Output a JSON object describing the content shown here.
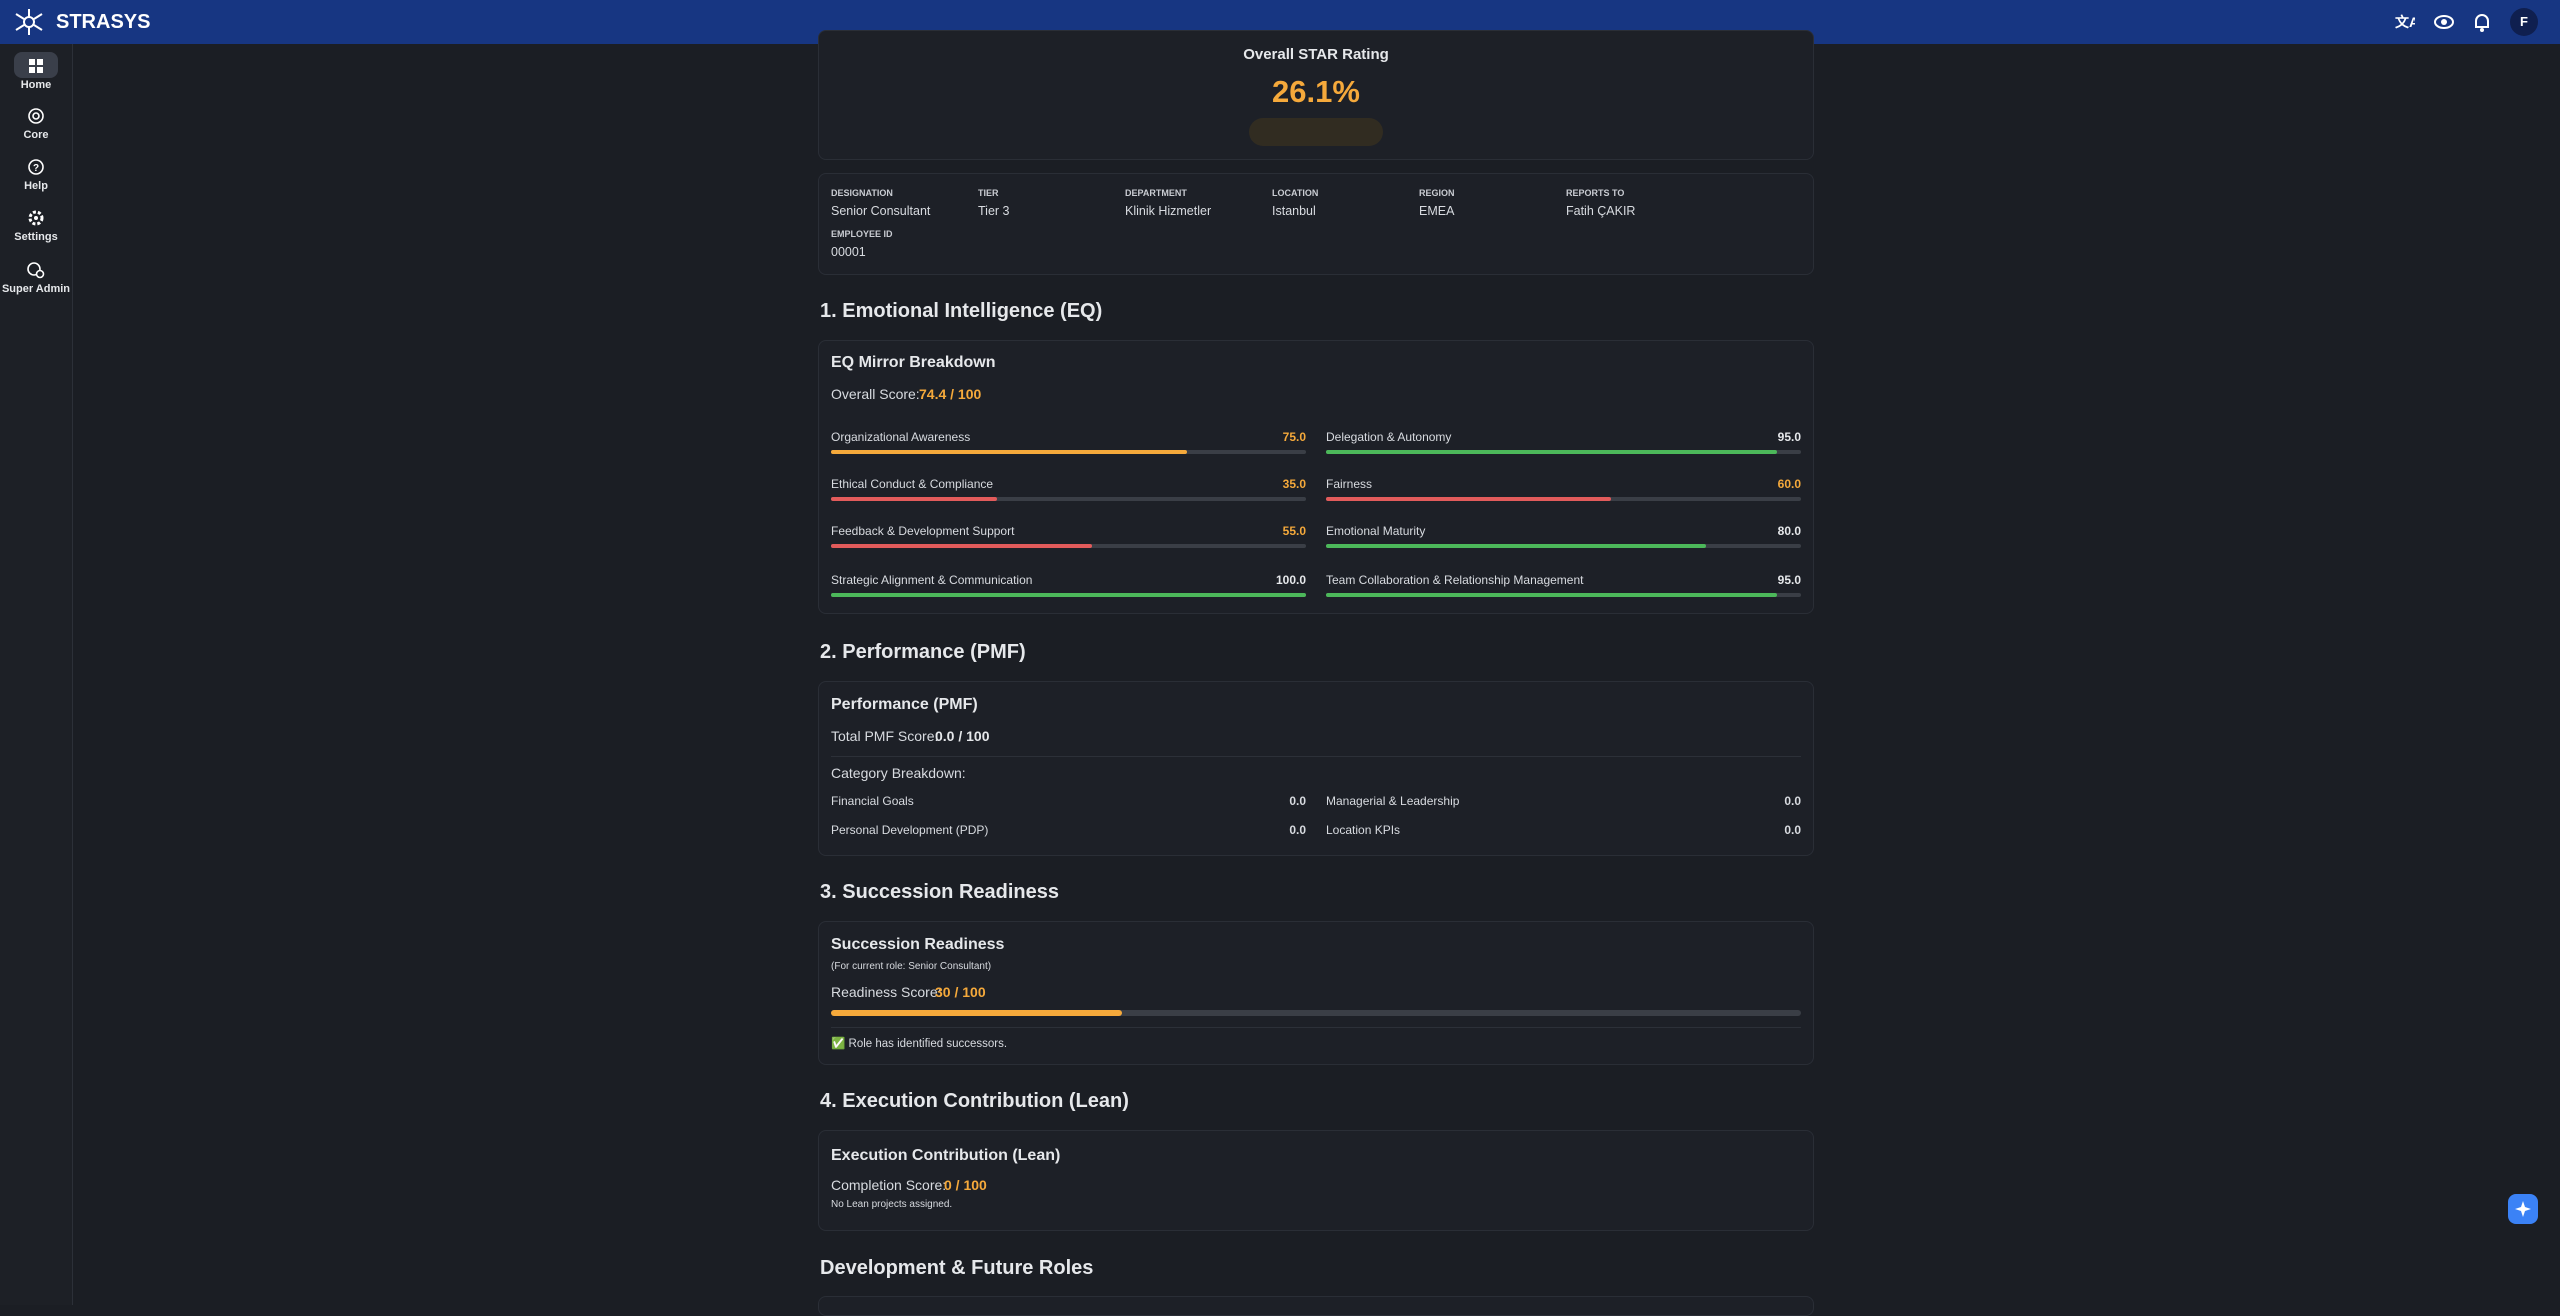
{
  "topbar": {
    "brand": "STRASYS",
    "avatar": "F"
  },
  "sidebar": [
    {
      "label": "Home"
    },
    {
      "label": "Core"
    },
    {
      "label": "Help"
    },
    {
      "label": "Settings"
    },
    {
      "label": "Super Admin"
    }
  ],
  "rating": {
    "title": "Overall STAR Rating",
    "value": "26.1%"
  },
  "profile": [
    {
      "label": "DESIGNATION",
      "value": "Senior Consultant"
    },
    {
      "label": "TIER",
      "value": "Tier 3"
    },
    {
      "label": "DEPARTMENT",
      "value": "Klinik Hizmetler"
    },
    {
      "label": "LOCATION",
      "value": "Istanbul"
    },
    {
      "label": "REGION",
      "value": "EMEA"
    },
    {
      "label": "REPORTS TO",
      "value": "Fatih ÇAKIR"
    },
    {
      "label": "EMPLOYEE ID",
      "value": "00001"
    }
  ],
  "eq": {
    "heading": "1. Emotional Intelligence (EQ)",
    "title": "EQ Mirror Breakdown",
    "score_label": "Overall Score:",
    "score": "74.4 / 100",
    "max": 100,
    "metrics": [
      {
        "name": "Organizational Awareness",
        "value": 75,
        "value_label": "75.0",
        "color": "#f5a93b",
        "label_color": "#f5a93b"
      },
      {
        "name": "Delegation & Autonomy",
        "value": 95,
        "value_label": "95.0",
        "color": "#4cb85a",
        "label_color": "#e6e8eb"
      },
      {
        "name": "Ethical Conduct & Compliance",
        "value": 35,
        "value_label": "35.0",
        "color": "#e25b5b",
        "label_color": "#f5a93b"
      },
      {
        "name": "Fairness",
        "value": 60,
        "value_label": "60.0",
        "color": "#e25b5b",
        "label_color": "#f5a93b"
      },
      {
        "name": "Feedback & Development Support",
        "value": 55,
        "value_label": "55.0",
        "color": "#e25b5b",
        "label_color": "#f5a93b"
      },
      {
        "name": "Emotional Maturity",
        "value": 80,
        "value_label": "80.0",
        "color": "#4cb85a",
        "label_color": "#e6e8eb"
      },
      {
        "name": "Strategic Alignment & Communication",
        "value": 100,
        "value_label": "100.0",
        "color": "#4cb85a",
        "label_color": "#e6e8eb"
      },
      {
        "name": "Team Collaboration & Relationship Management",
        "value": 95,
        "value_label": "95.0",
        "color": "#4cb85a",
        "label_color": "#e6e8eb"
      }
    ]
  },
  "pmf": {
    "heading": "2. Performance (PMF)",
    "title": "Performance (PMF)",
    "score_label": "Total PMF Score:",
    "score": "0.0 / 100",
    "breakdown_title": "Category Breakdown:",
    "categories": [
      {
        "name": "Financial Goals",
        "value": "0.0"
      },
      {
        "name": "Managerial & Leadership",
        "value": "0.0"
      },
      {
        "name": "Personal Development (PDP)",
        "value": "0.0"
      },
      {
        "name": "Location KPIs",
        "value": "0.0"
      }
    ]
  },
  "succession": {
    "heading": "3. Succession Readiness",
    "title": "Succession Readiness",
    "subtitle": "(For current role: Senior Consultant)",
    "score_label": "Readiness Score:",
    "value": 30,
    "value_label": "30 / 100",
    "max": 100,
    "note": "✅ Role has identified successors."
  },
  "lean": {
    "heading": "4. Execution Contribution (Lean)",
    "title": "Execution Contribution (Lean)",
    "score_label": "Completion Score:",
    "score": "0 / 100",
    "note": "No Lean projects assigned."
  },
  "next_heading": "Development & Future Roles"
}
